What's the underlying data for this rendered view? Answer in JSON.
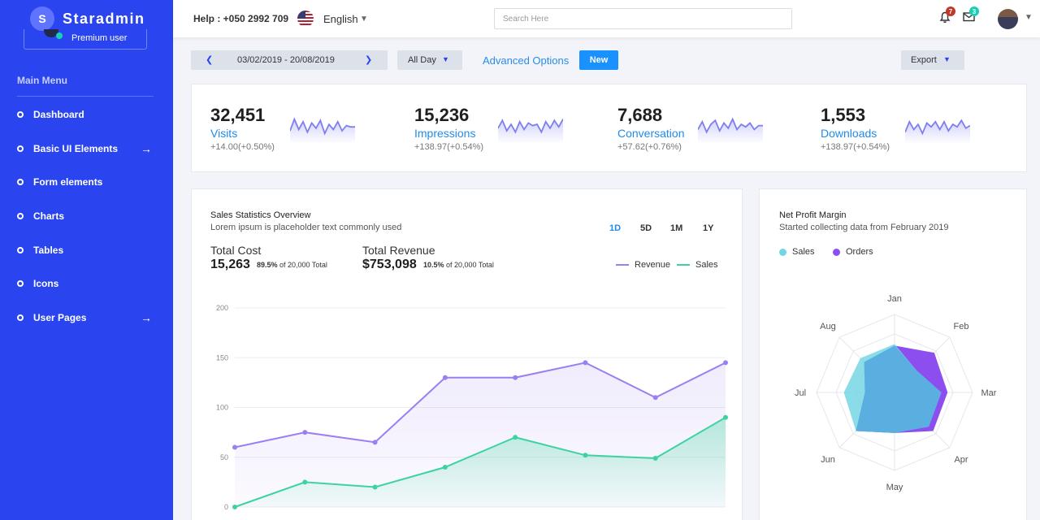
{
  "sidebar": {
    "brand": {
      "initial": "S",
      "name": "Staradmin"
    },
    "profile_label": "Premium user",
    "menu_title": "Main Menu",
    "items": [
      {
        "label": "Dashboard",
        "has_arrow": false
      },
      {
        "label": "Basic UI Elements",
        "has_arrow": true
      },
      {
        "label": "Form elements",
        "has_arrow": false
      },
      {
        "label": "Charts",
        "has_arrow": false
      },
      {
        "label": "Tables",
        "has_arrow": false
      },
      {
        "label": "Icons",
        "has_arrow": false
      },
      {
        "label": "User Pages",
        "has_arrow": true
      }
    ],
    "arrow_glyph": "→",
    "bg_color": "#2a45f0"
  },
  "header": {
    "help": "Help : +050 2992 709",
    "language": "English",
    "search_placeholder": "Search Here",
    "notifications_count": "7",
    "messages_count": "3",
    "notification_icon": "bell-icon",
    "messages_icon": "mail-icon"
  },
  "toolbar": {
    "date_range": "03/02/2019 - 20/08/2019",
    "period_select": "All Day",
    "advanced_options": "Advanced Options",
    "new_label": "New",
    "export_label": "Export"
  },
  "stats": [
    {
      "value": "32,451",
      "label": "Visits",
      "change": "+14.00(+0.50%)"
    },
    {
      "value": "15,236",
      "label": "Impressions",
      "change": "+138.97(+0.54%)"
    },
    {
      "value": "7,688",
      "label": "Conversation",
      "change": "+57.62(+0.76%)"
    },
    {
      "value": "1,553",
      "label": "Downloads",
      "change": "+138.97(+0.54%)"
    }
  ],
  "sales_overview": {
    "title": "Sales Statistics Overview",
    "subtitle": "Lorem ipsum is placeholder text commonly used",
    "periods": [
      "1D",
      "5D",
      "1M",
      "1Y"
    ],
    "active_period": "1D",
    "total_cost": {
      "label": "Total Cost",
      "value": "15,263",
      "pct": "89.5%",
      "note": " of 20,000 Total"
    },
    "total_revenue": {
      "label": "Total Revenue",
      "value": "$753,098",
      "pct": "10.5%",
      "note": " of 20,000 Total"
    },
    "legend": {
      "revenue": "Revenue",
      "sales": "Sales"
    }
  },
  "net_profit": {
    "title": "Net Profit Margin",
    "subtitle": "Started collecting data from February 2019",
    "legend": {
      "sales": "Sales",
      "orders": "Orders"
    }
  },
  "colors": {
    "revenue": "#9b7ff0",
    "sales": "#3dd3a0",
    "radar_sales": "#74d6e4",
    "radar_orders": "#8d4ef0",
    "radar_overlap": "#5aaee0",
    "accent": "#1e8bea",
    "spark": "#7d7ff0"
  },
  "chart_data": [
    {
      "type": "area",
      "title": "Sales Statistics Overview",
      "xlabel": "",
      "ylabel": "",
      "ylim": [
        0,
        200
      ],
      "yticks": [
        0,
        50,
        100,
        150,
        200
      ],
      "grid": true,
      "legend": "top-right",
      "x": [
        1,
        2,
        3,
        4,
        5,
        6,
        7,
        8
      ],
      "series": [
        {
          "name": "Revenue",
          "values": [
            60,
            75,
            65,
            130,
            130,
            145,
            110,
            145
          ]
        },
        {
          "name": "Sales",
          "values": [
            0,
            25,
            20,
            40,
            70,
            52,
            49,
            90
          ]
        }
      ]
    },
    {
      "type": "radar",
      "title": "Net Profit Margin",
      "categories": [
        "Jan",
        "Feb",
        "Mar",
        "Apr",
        "May",
        "Jun",
        "Jul",
        "Aug"
      ],
      "rmax": 100,
      "legend": "top-left",
      "series": [
        {
          "name": "Sales",
          "values": [
            62,
            40,
            60,
            62,
            52,
            70,
            65,
            62
          ]
        },
        {
          "name": "Orders",
          "values": [
            60,
            72,
            68,
            70,
            52,
            70,
            38,
            55
          ]
        }
      ]
    },
    {
      "type": "line",
      "title": "Visits sparkline",
      "values": [
        5,
        14,
        6,
        12,
        4,
        11,
        7,
        13,
        3,
        10,
        6,
        12,
        5,
        9,
        8,
        8
      ]
    },
    {
      "type": "line",
      "title": "Impressions sparkline",
      "values": [
        7,
        13,
        5,
        10,
        4,
        12,
        6,
        11,
        9,
        10,
        4,
        12,
        7,
        13,
        8,
        14
      ]
    },
    {
      "type": "line",
      "title": "Conversation sparkline",
      "values": [
        6,
        12,
        4,
        10,
        13,
        5,
        11,
        7,
        14,
        6,
        10,
        8,
        11,
        6,
        9,
        9
      ]
    },
    {
      "type": "line",
      "title": "Downloads sparkline",
      "values": [
        4,
        12,
        6,
        10,
        3,
        11,
        8,
        12,
        6,
        12,
        5,
        10,
        8,
        13,
        7,
        9
      ]
    }
  ]
}
